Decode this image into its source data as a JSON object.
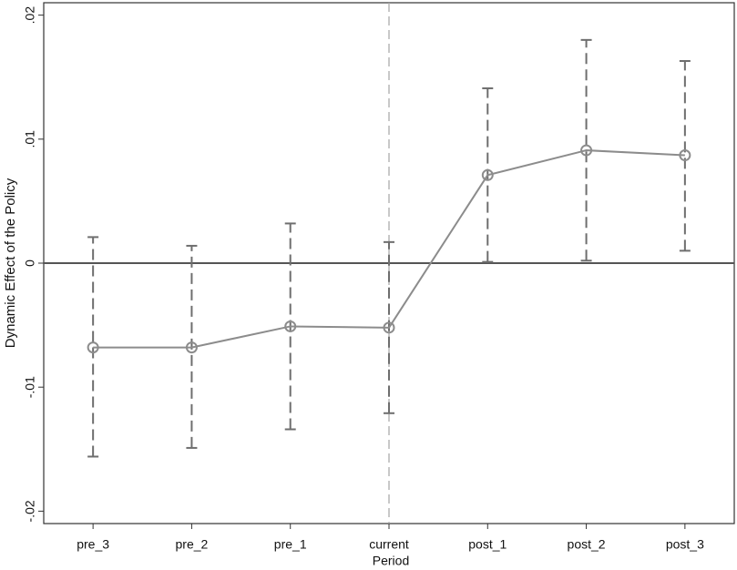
{
  "chart_data": {
    "type": "errorbar-line",
    "x_label": "Period",
    "y_label": "Dynamic Effect of the Policy",
    "categories": [
      "pre_3",
      "pre_2",
      "pre_1",
      "current",
      "post_1",
      "post_2",
      "post_3"
    ],
    "values": [
      -0.0068,
      -0.0068,
      -0.0051,
      -0.0052,
      0.0071,
      0.0091,
      0.0087
    ],
    "lower": [
      -0.0156,
      -0.0149,
      -0.0134,
      -0.0121,
      0.0001,
      0.0002,
      0.001
    ],
    "upper": [
      0.0021,
      0.0014,
      0.0032,
      0.0017,
      0.0141,
      0.018,
      0.0163
    ],
    "color": "#8c8c8c",
    "errorbar_color": "#6e6e6e",
    "ylim": [
      -0.021,
      0.021
    ],
    "yticks": [
      {
        "value": -0.02,
        "label": "-.02"
      },
      {
        "value": -0.01,
        "label": "-.01"
      },
      0,
      {
        "value": 0.01,
        "label": ".01"
      },
      {
        "value": 0.02,
        "label": ".02"
      }
    ],
    "yline": 0,
    "xline": "current"
  }
}
